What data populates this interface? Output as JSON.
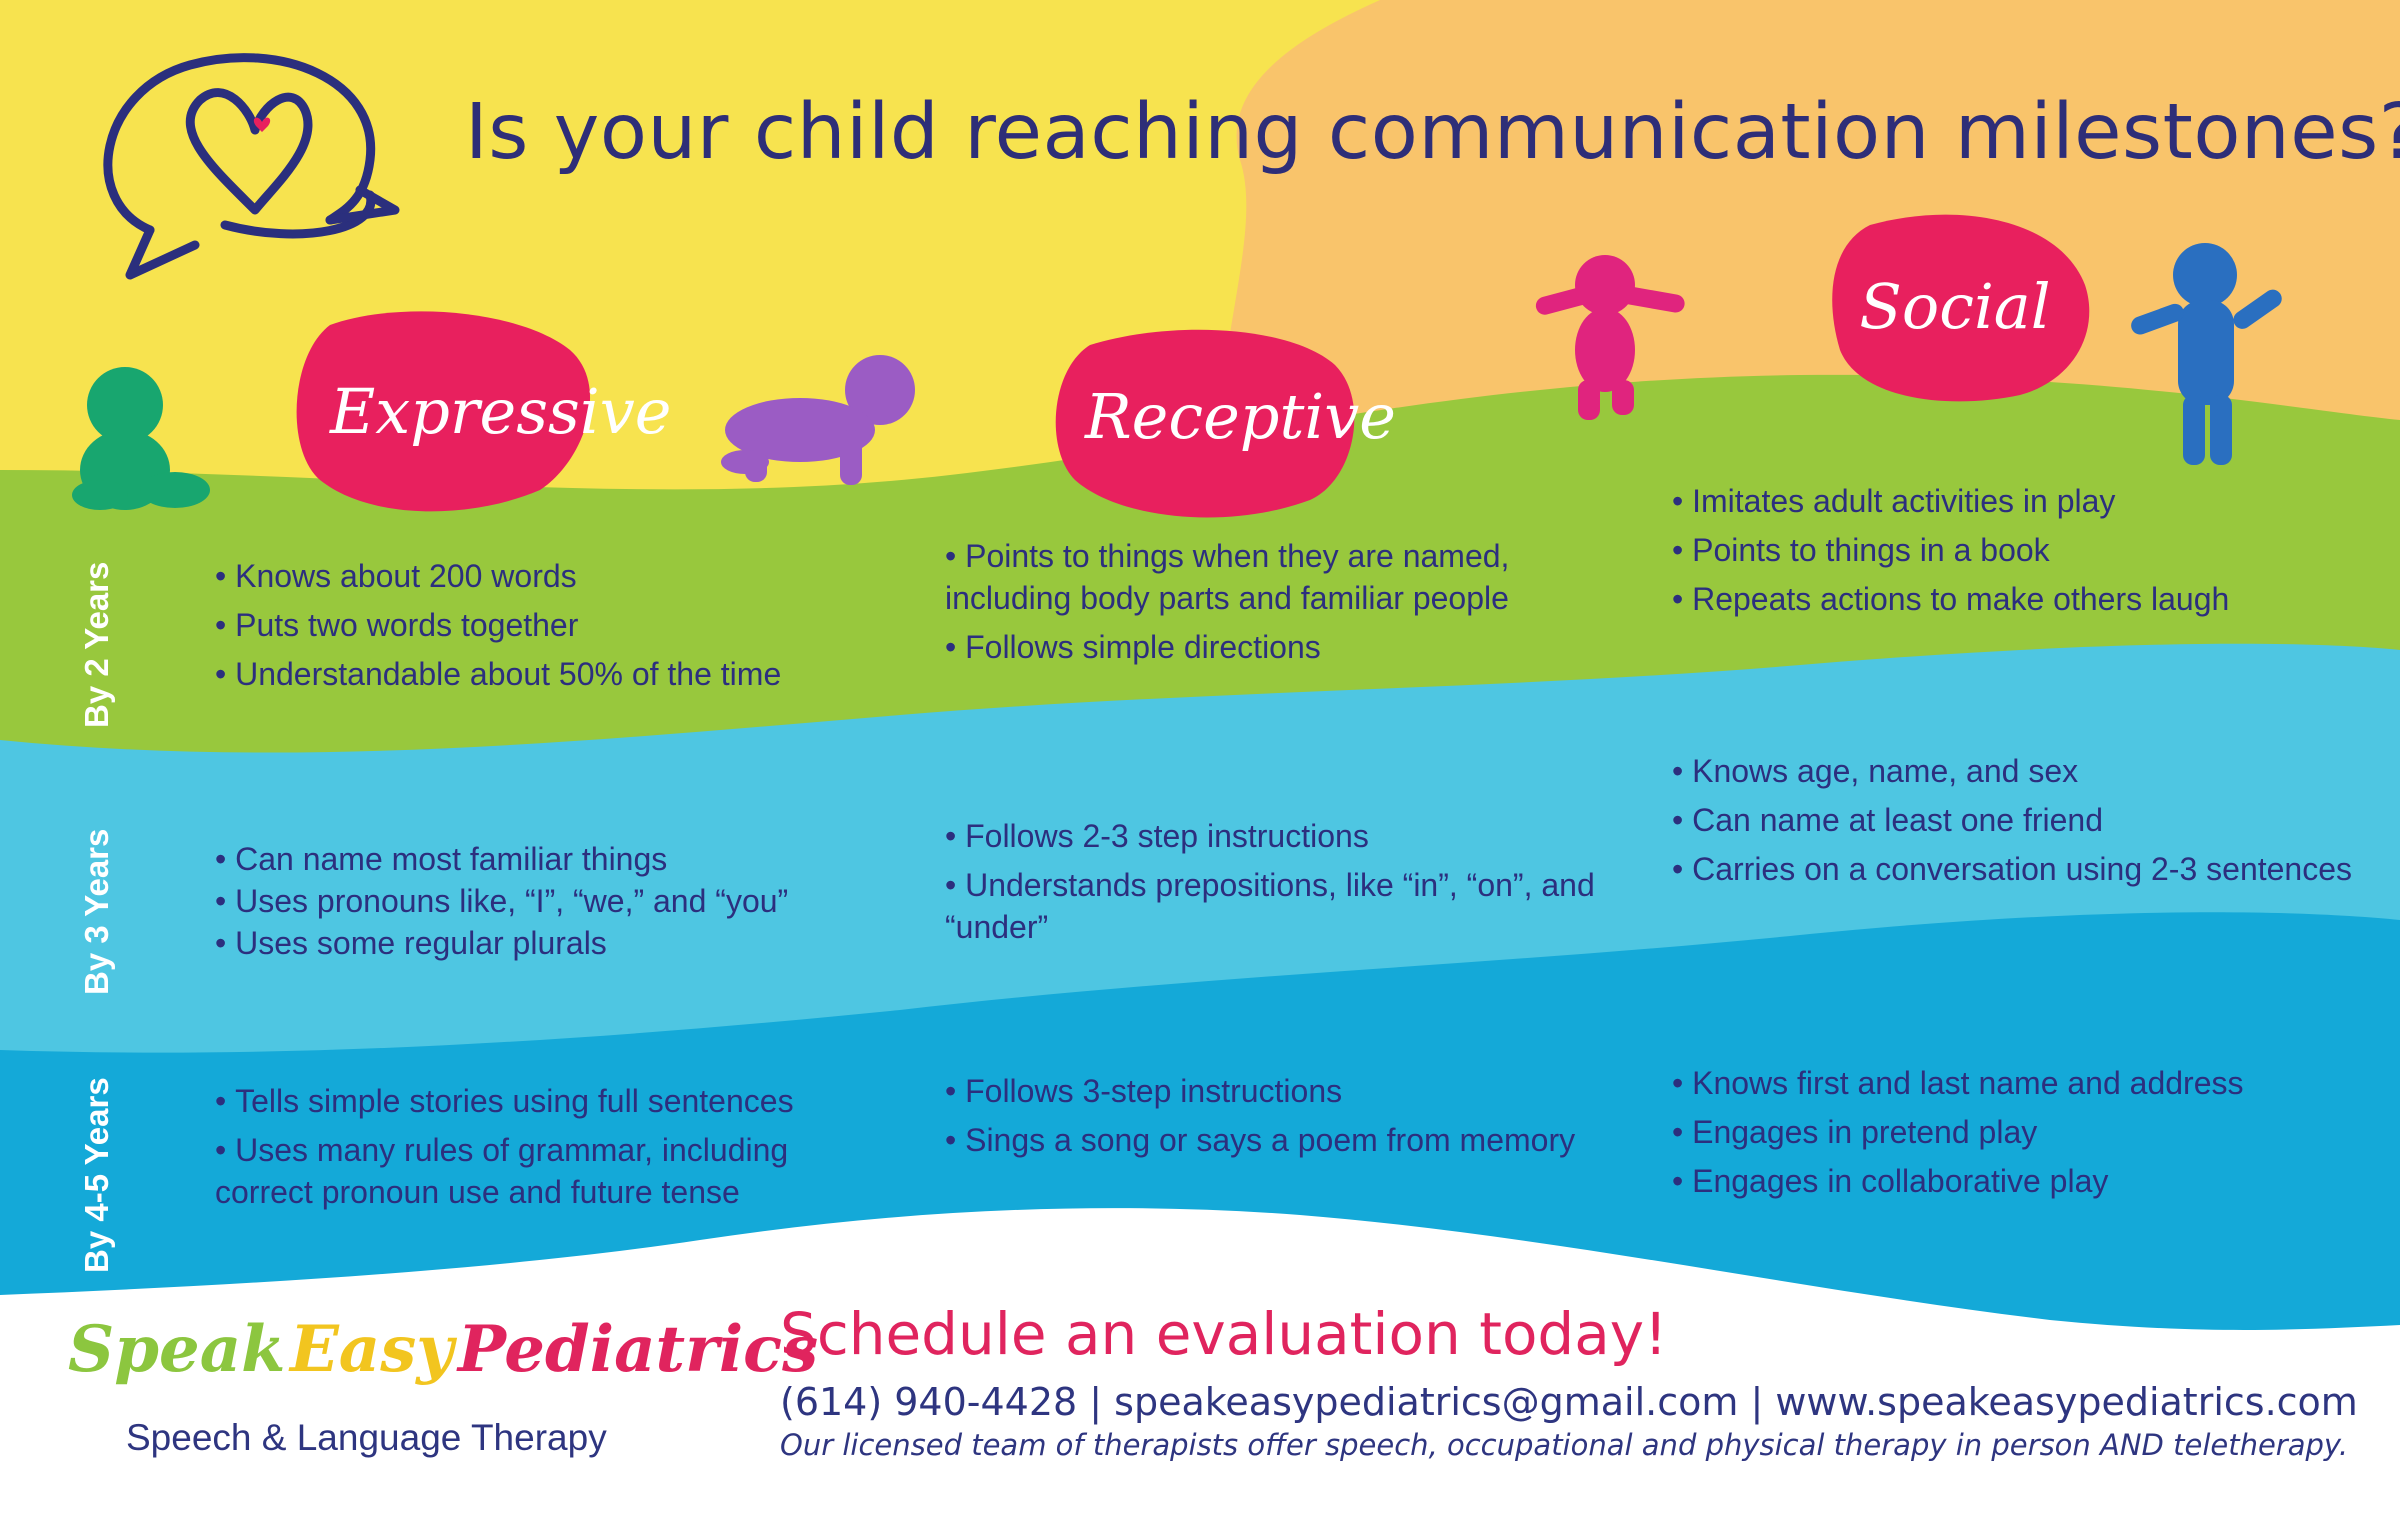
{
  "colors": {
    "yellow": "#f7e34f",
    "peach": "#f9c46b",
    "green": "#98c83d",
    "light_blue": "#4ec6e2",
    "blue": "#14a9d8",
    "pink": "#e8205e",
    "navy": "#2d2f7a",
    "toddler_green": "#18a66f",
    "toddler_purple": "#9b5cc4",
    "toddler_pink": "#e0247e",
    "toddler_blue": "#2a6fc0"
  },
  "header": {
    "title": "Is your child reaching communication milestones?"
  },
  "categories": {
    "expressive": "Expressive",
    "receptive": "Receptive",
    "social": "Social"
  },
  "rows": [
    {
      "label": "By 2 Years",
      "expressive": [
        "Knows about 200 words",
        "Puts two words together",
        "Understandable about 50% of the time"
      ],
      "receptive": [
        "Points to things when they are named, including body parts and familiar people",
        "Follows simple directions"
      ],
      "social": [
        "Imitates adult activities in play",
        "Points to things in a book",
        "Repeats actions to make others laugh"
      ]
    },
    {
      "label": "By 3 Years",
      "expressive": [
        "Can name most familiar things",
        "Uses pronouns like, “I”, “we,” and “you”",
        "Uses some regular plurals"
      ],
      "receptive": [
        "Follows 2-3 step instructions",
        "Understands prepositions, like “in”, “on”, and “under”"
      ],
      "social": [
        "Knows age, name, and sex",
        "Can name at least one friend",
        "Carries on a conversation using 2-3 sentences"
      ]
    },
    {
      "label": "By 4-5 Years",
      "expressive": [
        "Tells simple stories using full sentences",
        "Uses many rules of grammar, including correct pronoun use and future tense"
      ],
      "receptive": [
        "Follows 3-step instructions",
        "Sings a song or says a poem from memory"
      ],
      "social": [
        "Knows first and last name and address",
        "Engages in pretend play",
        "Engages in collaborative play"
      ]
    }
  ],
  "footer": {
    "logo": {
      "word1": "Speak",
      "word2": "Easy",
      "word3": "Pediatrics",
      "color1": "#8cc63f",
      "color2": "#f2c51f",
      "color3": "#e0245e"
    },
    "tagline": "Speech & Language Therapy",
    "cta": "Schedule an evaluation today!",
    "contact": "(614) 940-4428 | speakeasypediatrics@gmail.com | www.speakeasypediatrics.com",
    "note": "Our licensed team of therapists offer speech, occupational and physical therapy in person AND teletherapy."
  },
  "icons": {
    "logo_icon": "speech-bubble-heart-icon",
    "toddler1": "sitting-baby-icon",
    "toddler2": "crawling-baby-icon",
    "toddler3": "walking-baby-icon",
    "toddler4": "standing-toddler-icon"
  }
}
